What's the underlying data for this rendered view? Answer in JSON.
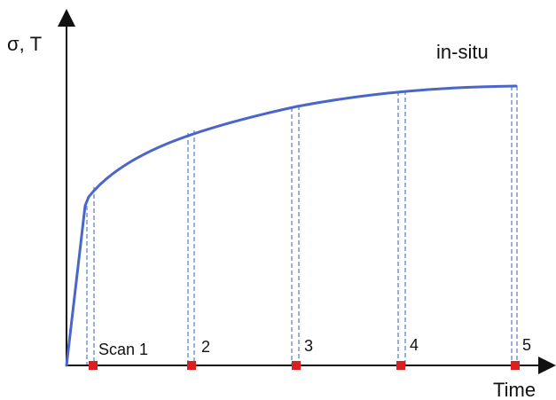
{
  "chart_data": {
    "type": "line",
    "title": "in-situ",
    "ylabel": "σ, T",
    "xlabel": "Time",
    "scans": [
      {
        "label": "Scan 1"
      },
      {
        "label": "2"
      },
      {
        "label": "3"
      },
      {
        "label": "4"
      },
      {
        "label": "5"
      }
    ]
  },
  "colors": {
    "curve": "#4a66c9",
    "dashed_guides": "#5f84d6",
    "scan_markers": "#dd1f1f",
    "axes": "#111111"
  }
}
